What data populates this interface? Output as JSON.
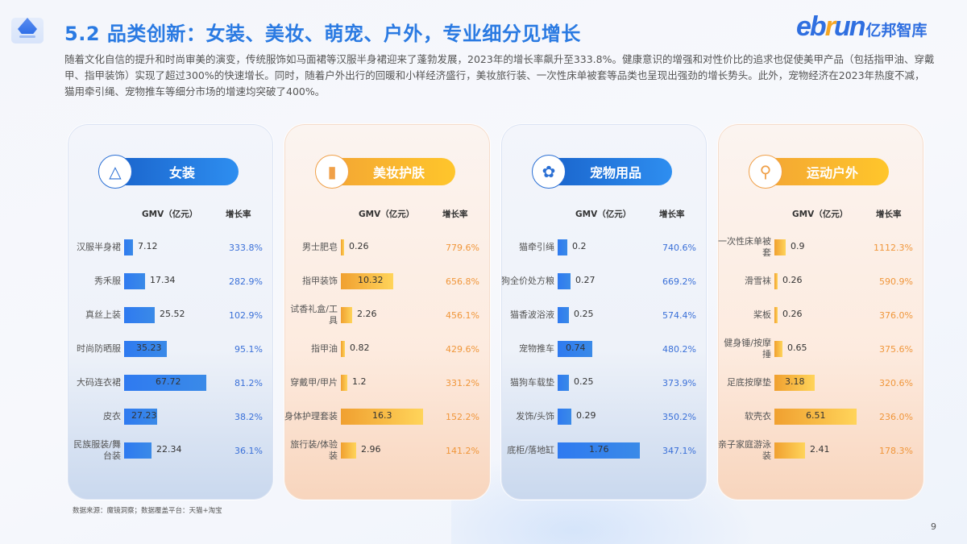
{
  "header": {
    "title": "5.2 品类创新：女装、美妆、萌宠、户外，专业细分见增长",
    "logo_brand_prefix": "eb",
    "logo_brand_r": "r",
    "logo_brand_suffix": "un",
    "logo_cn": "亿邦智库",
    "intro": "随着文化自信的提升和时尚审美的演变，传统服饰如马面裙等汉服半身裙迎来了蓬勃发展，2023年的增长率飙升至333.8%。健康意识的增强和对性价比的追求也促使美甲产品（包括指甲油、穿戴甲、指甲装饰）实现了超过300%的快速增长。同时，随着户外出行的回暖和小样经济盛行，美妆旅行装、一次性床单被套等品类也呈现出强劲的增长势头。此外，宠物经济在2023年热度不减，猫用牵引绳、宠物推车等细分市场的增速均突破了400%。"
  },
  "columns": {
    "gmv": "GMV（亿元）",
    "rate": "增长率"
  },
  "footer": {
    "source": "数据来源：魔镜洞察；数据覆盖平台：天猫+淘宝",
    "page": "9"
  },
  "colors": {
    "blue_accent": "#2a7ae2",
    "orange_accent": "#f0963a"
  },
  "chart_data": [
    {
      "type": "bar",
      "title": "女装",
      "icon": "dress-icon",
      "theme": "blue",
      "xlabel": "GMV（亿元）",
      "secondary_label": "增长率",
      "categories": [
        "汉服半身裙",
        "秀禾服",
        "真丝上装",
        "时尚防晒服",
        "大码连衣裙",
        "皮衣",
        "民族服装/舞台装"
      ],
      "values": [
        7.12,
        17.34,
        25.52,
        35.23,
        67.72,
        27.23,
        22.34
      ],
      "growth": [
        "333.8%",
        "282.9%",
        "102.9%",
        "95.1%",
        "81.2%",
        "38.2%",
        "36.1%"
      ],
      "max": 67.72
    },
    {
      "type": "bar",
      "title": "美妆护肤",
      "icon": "lipstick-icon",
      "theme": "orange",
      "xlabel": "GMV（亿元）",
      "secondary_label": "增长率",
      "categories": [
        "男士肥皂",
        "指甲装饰",
        "试香礼盒/工具",
        "指甲油",
        "穿戴甲/甲片",
        "身体护理套装",
        "旅行装/体验装"
      ],
      "values": [
        0.26,
        10.32,
        2.26,
        0.82,
        1.2,
        16.3,
        2.96
      ],
      "growth": [
        "779.6%",
        "656.8%",
        "456.1%",
        "429.6%",
        "331.2%",
        "152.2%",
        "141.2%"
      ],
      "max": 16.3
    },
    {
      "type": "bar",
      "title": "宠物用品",
      "icon": "paw-icon",
      "theme": "blue",
      "xlabel": "GMV（亿元）",
      "secondary_label": "增长率",
      "categories": [
        "猫牵引绳",
        "狗全价处方粮",
        "猫香波浴液",
        "宠物推车",
        "猫狗车载垫",
        "发饰/头饰",
        "底柜/落地缸"
      ],
      "values": [
        0.2,
        0.27,
        0.25,
        0.74,
        0.25,
        0.29,
        1.76
      ],
      "growth": [
        "740.6%",
        "669.2%",
        "574.4%",
        "480.2%",
        "373.9%",
        "350.2%",
        "347.1%"
      ],
      "max": 1.76
    },
    {
      "type": "bar",
      "title": "运动户外",
      "icon": "racket-icon",
      "theme": "orange",
      "xlabel": "GMV（亿元）",
      "secondary_label": "增长率",
      "categories": [
        "一次性床单被套",
        "滑雪袜",
        "桨板",
        "健身锤/按摩捶",
        "足底按摩垫",
        "软壳衣",
        "亲子家庭游泳装"
      ],
      "values": [
        0.9,
        0.26,
        0.26,
        0.65,
        3.18,
        6.51,
        2.41
      ],
      "growth": [
        "1112.3%",
        "590.9%",
        "376.0%",
        "375.6%",
        "320.6%",
        "236.0%",
        "178.3%"
      ],
      "max": 6.51
    }
  ]
}
